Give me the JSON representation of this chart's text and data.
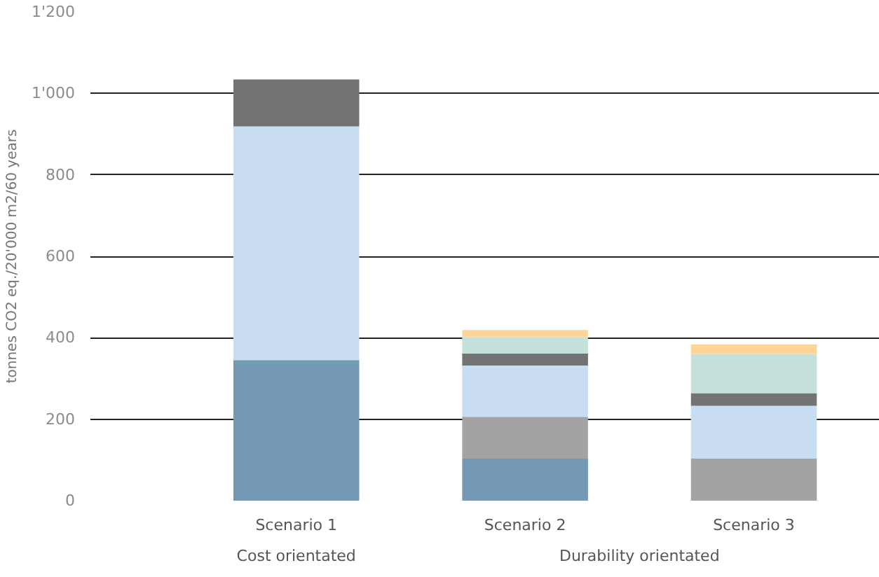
{
  "chart_data": {
    "type": "bar",
    "stacked": true,
    "ylabel": "tonnes CO2 eq./20'000 m2/60 years",
    "categories": [
      "Scenario 1",
      "Scenario 2",
      "Scenario 3"
    ],
    "series": [
      {
        "color": "#7399b5",
        "values": [
          345,
          103,
          0
        ]
      },
      {
        "color": "#a3a3a3",
        "values": [
          0,
          103,
          103
        ]
      },
      {
        "color": "#c8dcf2",
        "values": [
          574,
          126,
          130
        ]
      },
      {
        "color": "#737373",
        "values": [
          115,
          29,
          31
        ]
      },
      {
        "color": "#c5dfda",
        "values": [
          0,
          40,
          96
        ]
      },
      {
        "color": "#fcd699",
        "values": [
          0,
          18,
          24
        ]
      }
    ],
    "ylim": [
      0,
      1200
    ],
    "yticks": [
      0,
      200,
      400,
      600,
      800,
      {
        "value": 1000,
        "label": "1'000"
      },
      {
        "value": 1200,
        "label": "1'200"
      }
    ],
    "grid": "y",
    "annotations": [
      "Cost orientated",
      "Durability orientated"
    ]
  }
}
